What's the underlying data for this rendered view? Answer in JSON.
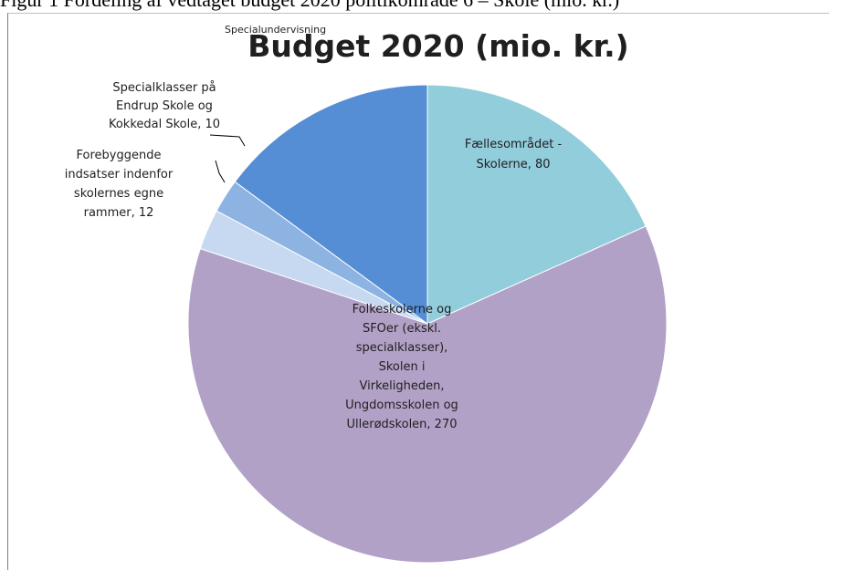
{
  "caption": "Figur 1 Fordeling af vedtaget budget 2020 politikområde 6 – Skole (mio. kr.)",
  "chart_data": {
    "type": "pie",
    "title": "Budget 2020 (mio. kr.)",
    "overlay_label": "Specialundervisning",
    "start_angle_deg": 0,
    "direction": "clockwise",
    "slices": [
      {
        "name": "Fællesområdet - Skolerne",
        "value": 80,
        "color": "#92CDDC",
        "label_lines": [
          "Fællesområdet -",
          "Skolerne, 80"
        ]
      },
      {
        "name": "Folkeskolerne og SFOer (ekskl. specialklasser), Skolen i Virkeligheden, Ungdomsskolen og Ullerødskolen",
        "value": 270,
        "color": "#B2A1C7",
        "label_lines": [
          "Folkeskolerne og",
          "SFOer (ekskl.",
          "specialklasser),",
          "Skolen i",
          "Virkeligheden,",
          "Ungdomsskolen og",
          "Ullerødskolen, 270"
        ]
      },
      {
        "name": "Forebyggende indsatser indenfor skolernes egne rammer",
        "value": 12,
        "color": "#C6D9F1",
        "label_lines": [
          "Forebyggende",
          "indsatser indenfor",
          "skolernes egne",
          "rammer, 12"
        ]
      },
      {
        "name": "Specialklasser på Endrup Skole og Kokkedal Skole",
        "value": 10,
        "color": "#8DB3E2",
        "label_lines": [
          "Specialklasser på",
          "Endrup Skole og",
          "Kokkedal Skole, 10"
        ]
      },
      {
        "name": "Specialundervisning",
        "value": 65,
        "color": "#558ED5",
        "label_lines": []
      }
    ]
  }
}
